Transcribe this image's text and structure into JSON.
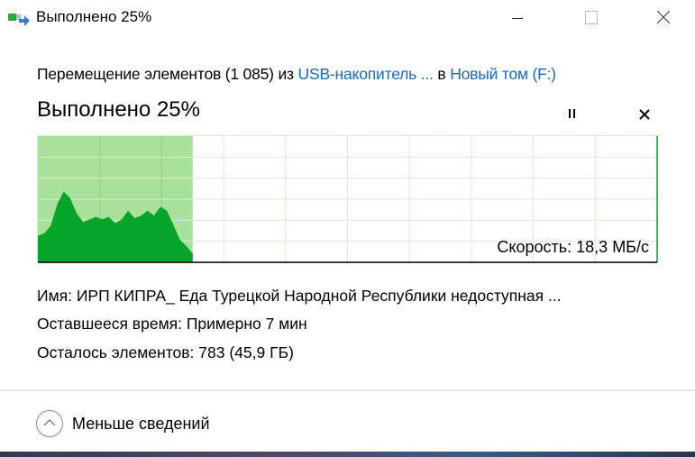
{
  "window": {
    "title": "Выполнено 25%",
    "app_icon": "file-move-icon"
  },
  "header": {
    "operation": "Перемещение элементов (1 085) из",
    "source": "USB-накопитель ...",
    "connector": "в",
    "destination": "Новый том (F:)",
    "progress_title": "Выполнено 25%"
  },
  "progress": {
    "percent": 25,
    "speed_label": "Скорость: 18,3 МБ/с",
    "speed_history_fraction_of_max": [
      0.21,
      0.23,
      0.29,
      0.46,
      0.56,
      0.51,
      0.39,
      0.32,
      0.34,
      0.36,
      0.34,
      0.36,
      0.31,
      0.34,
      0.41,
      0.35,
      0.37,
      0.41,
      0.37,
      0.44,
      0.41,
      0.3,
      0.18,
      0.13,
      0.07
    ],
    "colors": {
      "done_fill": "#a8e29a",
      "speed_fill": "#06a52a",
      "grid": "#d8ead8",
      "border": "#0aa52a"
    }
  },
  "details": {
    "name_label": "Имя:",
    "name_value": "ИРП КИПРА_ Еда Турецкой Народной Республики недоступная ...",
    "time_label": "Оставшееся время:",
    "time_value": "Примерно 7 мин",
    "items_label": "Осталось элементов:",
    "items_value": "783 (45,9 ГБ)"
  },
  "footer": {
    "toggle_label": "Меньше сведений"
  }
}
